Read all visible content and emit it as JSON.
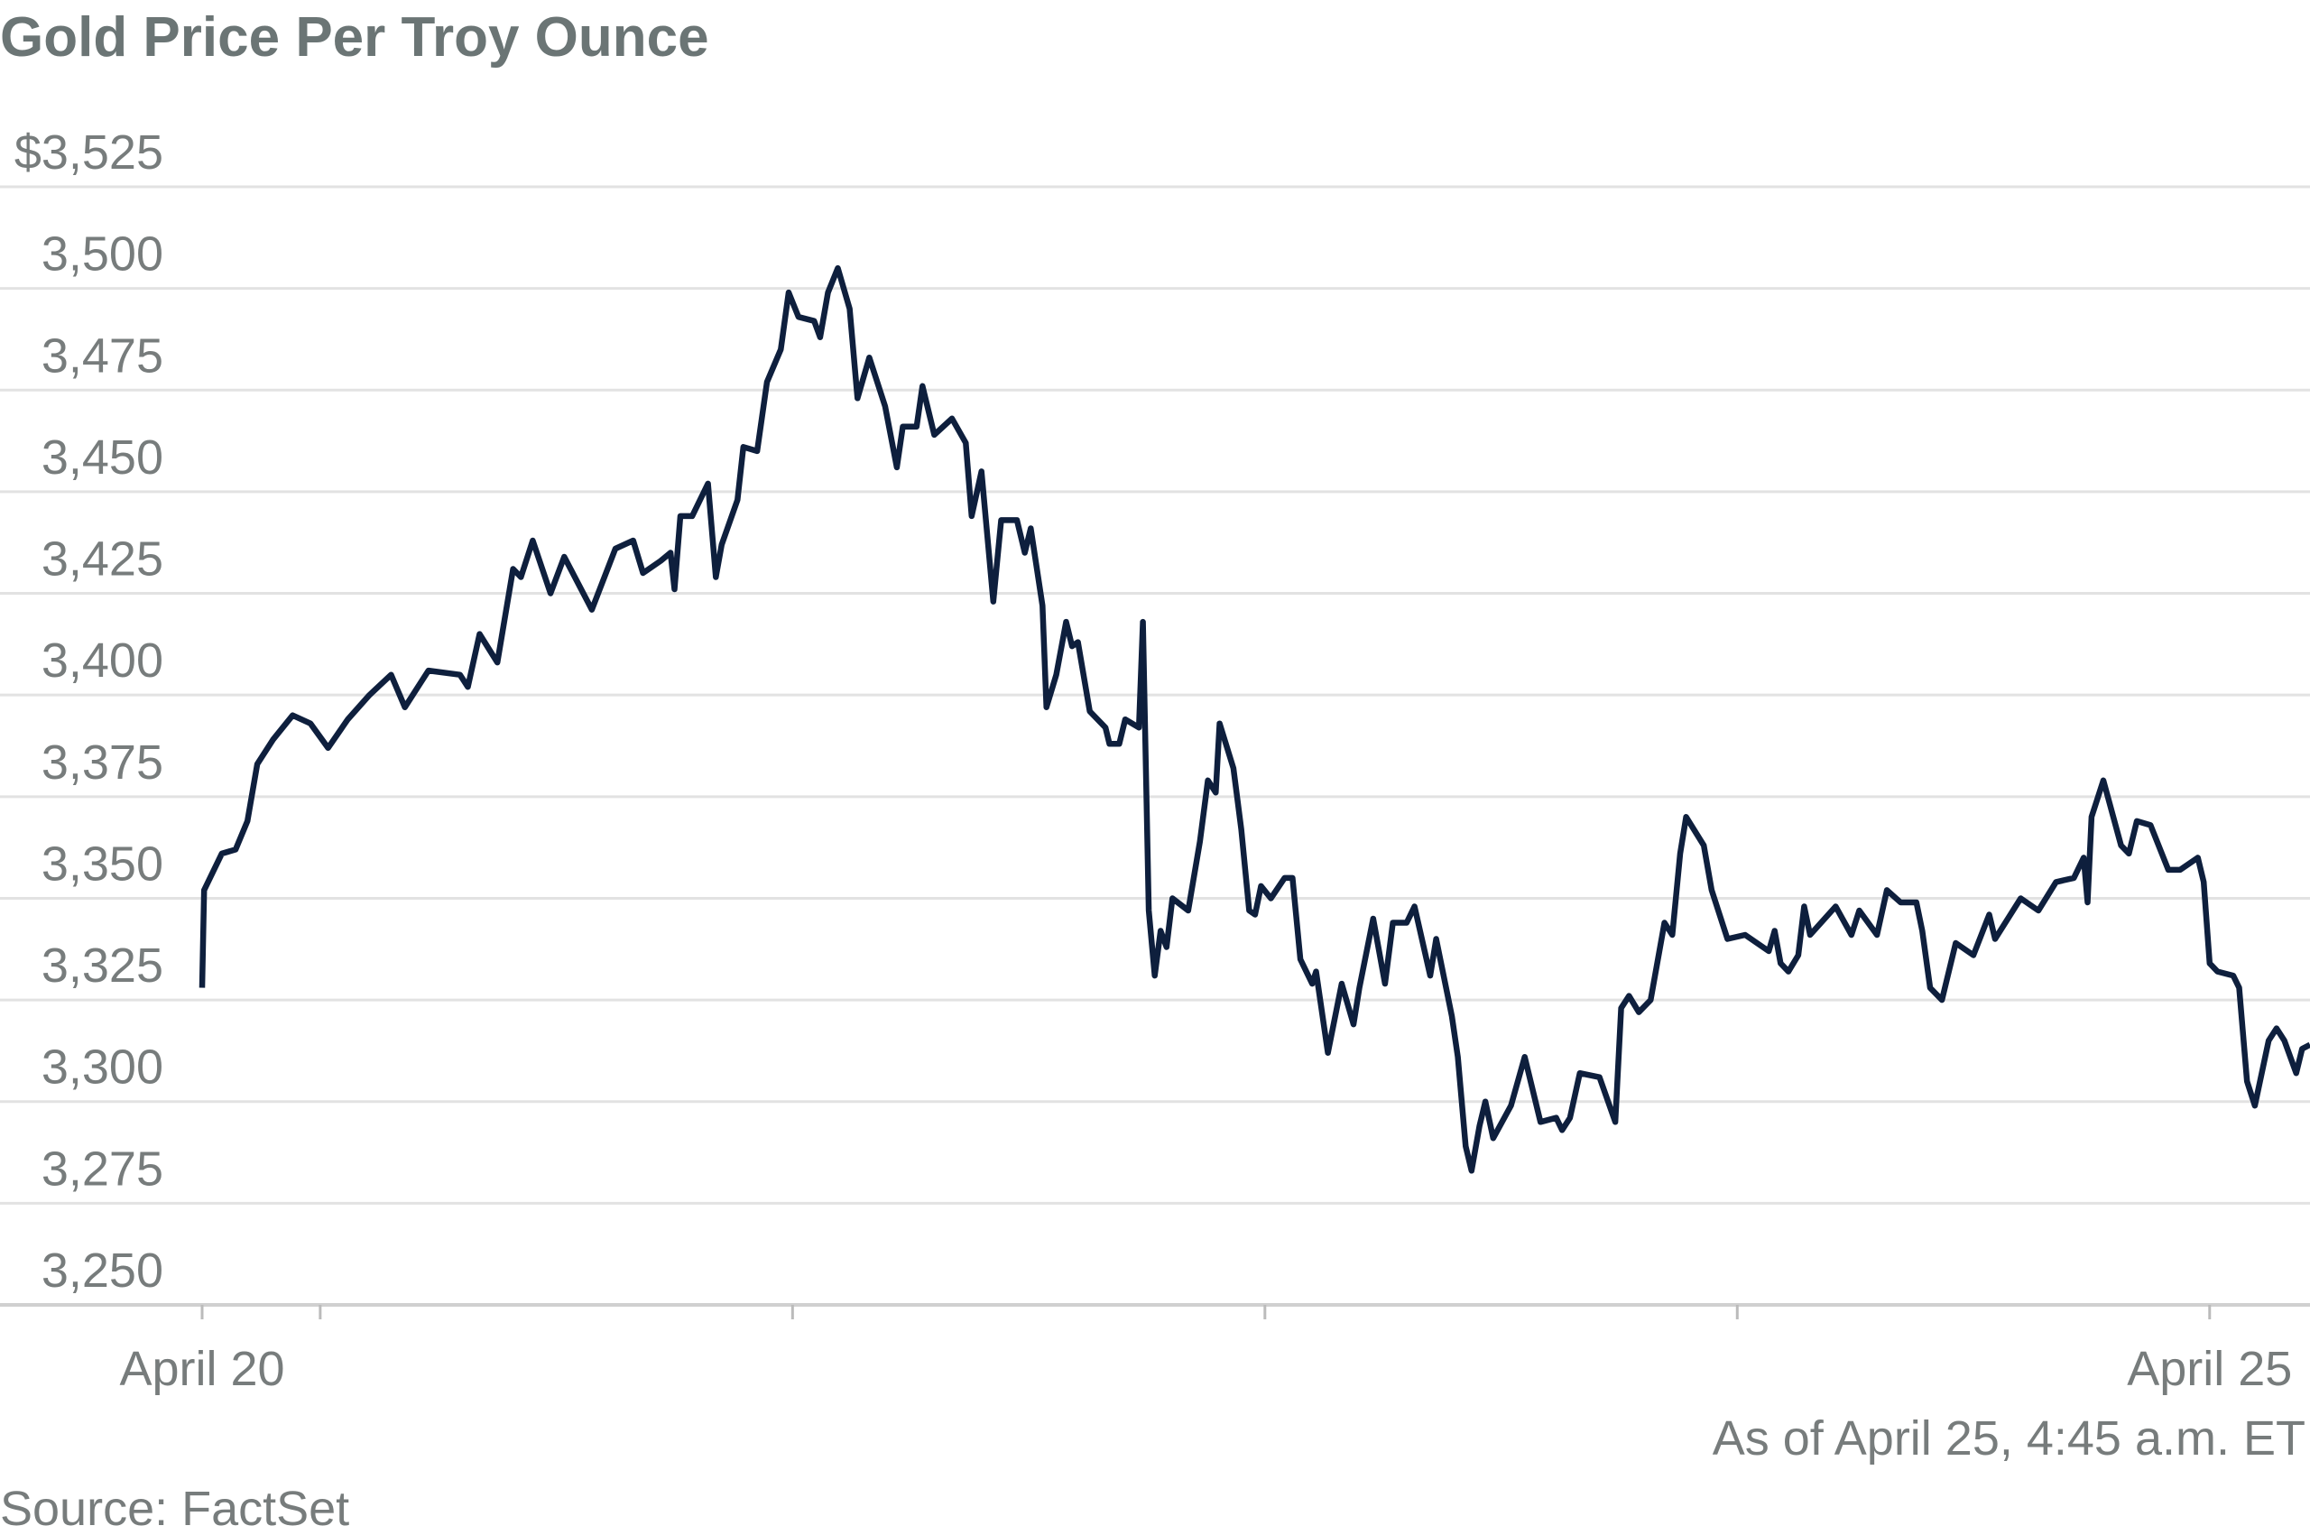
{
  "chart_data": {
    "type": "line",
    "title": "Gold Price Per Troy Ounce",
    "note": "As of April 25, 4:45 a.m. ET",
    "source": "Source: FactSet",
    "color": "#0e1f3d",
    "grid": true,
    "x": [
      0,
      0.1,
      1.0,
      1.7,
      2.3,
      2.8,
      3.6,
      4.6,
      5.5,
      6.4,
      7.4,
      8.5,
      9.6,
      10.3,
      11.5,
      13.1,
      13.5,
      14.1,
      15.0,
      15.8,
      16.2,
      16.8,
      17.7,
      18.4,
      19.8,
      21.0,
      21.9,
      22.4,
      23.3,
      23.8,
      24.0,
      24.3,
      24.9,
      25.7,
      26.1,
      26.4,
      27.2,
      27.5,
      28.2,
      28.7,
      29.4,
      29.8,
      30.3,
      31.1,
      31.4,
      31.8,
      32.3,
      32.9,
      33.3,
      33.9,
      34.7,
      35.3,
      35.6,
      36.3,
      36.6,
      37.2,
      38.1,
      38.8,
      39.1,
      39.6,
      40.2,
      40.6,
      41.4,
      41.8,
      42.1,
      42.7,
      42.9,
      43.4,
      43.9,
      44.2,
      44.5,
      45.1,
      45.9,
      46.1,
      46.6,
      46.9,
      47.6,
      47.8,
      48.1,
      48.4,
      48.7,
      49.0,
      49.3,
      50.1,
      50.7,
      51.1,
      51.5,
      51.7,
      52.4,
      52.8,
      53.2,
      53.5,
      53.8,
      54.3,
      55.0,
      55.4,
      55.8,
      56.4,
      56.6,
      57.2,
      57.9,
      58.5,
      58.8,
      59.5,
      60.1,
      60.5,
      61.2,
      61.6,
      62.4,
      62.7,
      63.5,
      63.8,
      64.2,
      64.5,
      64.9,
      65.2,
      65.6,
      66.5,
      67.2,
      68.0,
      68.8,
      69.1,
      69.5,
      70.0,
      71.0,
      71.8,
      72.1,
      72.5,
      73.0,
      73.6,
      74.3,
      74.7,
      75.1,
      75.4,
      76.3,
      76.7,
      77.5,
      78.4,
      79.6,
      79.9,
      80.2,
      80.6,
      81.1,
      81.4,
      81.7,
      83.0,
      83.8,
      84.2,
      85.1,
      85.6,
      86.3,
      87.1,
      87.4,
      87.8,
      88.4,
      89.1,
      90.0,
      90.8,
      91.1,
      92.4,
      93.3,
      94.2,
      95.1,
      95.6,
      95.8,
      96.0,
      96.6,
      97.5,
      97.9,
      98.3,
      99.0,
      99.9,
      100.5,
      101.4,
      101.7,
      102.0,
      102.4,
      103.2,
      103.5,
      103.9,
      104.3,
      105.0,
      105.4,
      105.8,
      106.4,
      106.7,
      107.1
    ],
    "values": [
      3328,
      3352,
      3361,
      3362,
      3369,
      3383,
      3389,
      3395,
      3393,
      3387,
      3394,
      3400,
      3405,
      3397,
      3406,
      3405,
      3402,
      3415,
      3408,
      3431,
      3429,
      3438,
      3425,
      3434,
      3421,
      3436,
      3438,
      3430,
      3433,
      3435,
      3426,
      3444,
      3444,
      3452,
      3429,
      3437,
      3448,
      3461,
      3460,
      3477,
      3485,
      3499,
      3493,
      3492,
      3488,
      3499,
      3505,
      3495,
      3473,
      3483,
      3471,
      3456,
      3466,
      3466,
      3476,
      3464,
      3468,
      3462,
      3444,
      3455,
      3423,
      3443,
      3443,
      3435,
      3441,
      3422,
      3397,
      3405,
      3418,
      3412,
      3413,
      3396,
      3392,
      3388,
      3388,
      3394,
      3392,
      3418,
      3347,
      3331,
      3342,
      3338,
      3350,
      3347,
      3364,
      3379,
      3376,
      3393,
      3382,
      3367,
      3347,
      3346,
      3353,
      3350,
      3355,
      3355,
      3335,
      3329,
      3332,
      3312,
      3329,
      3319,
      3328,
      3345,
      3329,
      3344,
      3344,
      3348,
      3331,
      3340,
      3321,
      3311,
      3289,
      3283,
      3294,
      3300,
      3291,
      3299,
      3311,
      3295,
      3296,
      3293,
      3296,
      3307,
      3306,
      3295,
      3323,
      3326,
      3322,
      3325,
      3344,
      3341,
      3361,
      3370,
      3363,
      3352,
      3340,
      3341,
      3337,
      3342,
      3334,
      3332,
      3336,
      3348,
      3341,
      3348,
      3341,
      3347,
      3341,
      3352,
      3349,
      3349,
      3342,
      3328,
      3325,
      3339,
      3336,
      3346,
      3340,
      3350,
      3347,
      3354,
      3355,
      3360,
      3349,
      3370,
      3379,
      3363,
      3361,
      3369,
      3368,
      3357,
      3357,
      3360,
      3354,
      3334,
      3332,
      3331,
      3328,
      3305,
      3299,
      3315,
      3318,
      3315,
      3307,
      3313,
      3314
    ],
    "xlim": [
      0,
      107.1
    ],
    "xticks": [
      {
        "value": 0,
        "label": "April 20"
      },
      {
        "value": 102,
        "label": "April 25"
      }
    ],
    "xminor_ticks": [
      6,
      30,
      54,
      78
    ],
    "ylim": [
      3250,
      3525
    ],
    "yticks": [
      {
        "value": 3250,
        "label": "3,250"
      },
      {
        "value": 3275,
        "label": "3,275"
      },
      {
        "value": 3300,
        "label": "3,300"
      },
      {
        "value": 3325,
        "label": "3,325"
      },
      {
        "value": 3350,
        "label": "3,350"
      },
      {
        "value": 3375,
        "label": "3,375"
      },
      {
        "value": 3400,
        "label": "3,400"
      },
      {
        "value": 3425,
        "label": "3,425"
      },
      {
        "value": 3450,
        "label": "3,450"
      },
      {
        "value": 3475,
        "label": "3,475"
      },
      {
        "value": 3500,
        "label": "3,500"
      },
      {
        "value": 3525,
        "label": "$3,525"
      }
    ]
  }
}
